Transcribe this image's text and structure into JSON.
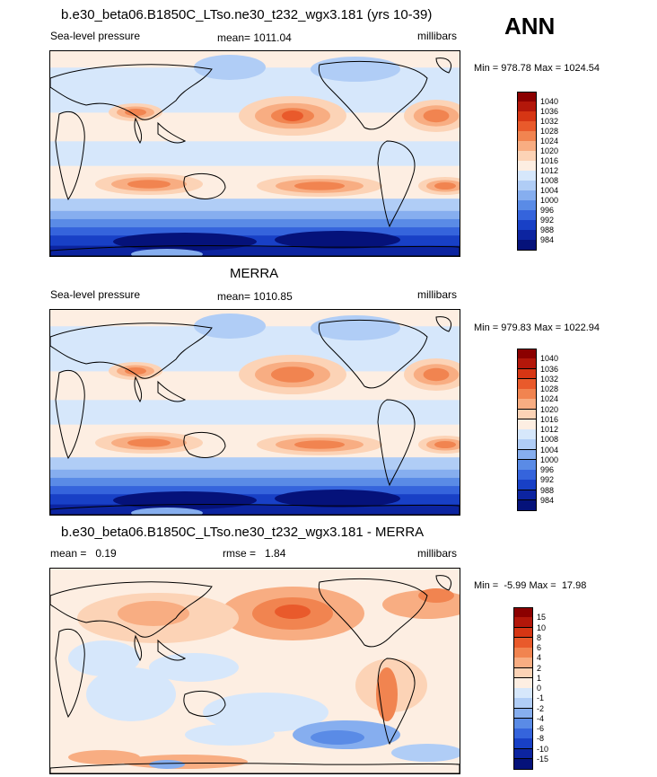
{
  "season": "ANN",
  "panels": [
    {
      "id": "model",
      "title": "b.e30_beta06.B1850C_LTso.ne30_t232_wgx3.181 (yrs 10-39)",
      "variable": "Sea-level pressure",
      "stat_label": "mean= 1011.04",
      "units": "millibars",
      "minmax": "Min = 978.78 Max = 1024.54"
    },
    {
      "id": "obs",
      "title": "MERRA",
      "variable": "Sea-level pressure",
      "stat_label": "mean= 1010.85",
      "units": "millibars",
      "minmax": "Min = 979.83 Max = 1022.94"
    },
    {
      "id": "diff",
      "title": "b.e30_beta06.B1850C_LTso.ne30_t232_wgx3.181 - MERRA",
      "mean_label": "mean =   0.19",
      "rmse_label": "rmse =   1.84",
      "units": "millibars",
      "minmax": "Min =  -5.99 Max =  17.98"
    }
  ],
  "chart_data": [
    {
      "type": "heatmap",
      "title": "b.e30_beta06.B1850C_LTso.ne30_t232_wgx3.181 (yrs 10-39)",
      "variable": "Sea-level pressure",
      "units": "millibars",
      "mean": 1011.04,
      "min": 978.78,
      "max": 1024.54,
      "colorbar_levels": [
        "1040",
        "1036",
        "1032",
        "1028",
        "1024",
        "1020",
        "1016",
        "1012",
        "1008",
        "1004",
        "1000",
        "996",
        "992",
        "988",
        "984"
      ],
      "colorbar_colors": [
        "#8b0000",
        "#b3170a",
        "#d63614",
        "#e95a2b",
        "#f18450",
        "#f8ad82",
        "#fcd3b6",
        "#fdeee2",
        "#d6e7fb",
        "#b0cdf6",
        "#86aeef",
        "#5a8be6",
        "#3564dc",
        "#1840c6",
        "#0c24a0",
        "#05127a"
      ]
    },
    {
      "type": "heatmap",
      "title": "MERRA",
      "variable": "Sea-level pressure",
      "units": "millibars",
      "mean": 1010.85,
      "min": 979.83,
      "max": 1022.94,
      "colorbar_levels": [
        "1040",
        "1036",
        "1032",
        "1028",
        "1024",
        "1020",
        "1016",
        "1012",
        "1008",
        "1004",
        "1000",
        "996",
        "992",
        "988",
        "984"
      ],
      "colorbar_colors": [
        "#8b0000",
        "#b3170a",
        "#d63614",
        "#e95a2b",
        "#f18450",
        "#f8ad82",
        "#fcd3b6",
        "#fdeee2",
        "#d6e7fb",
        "#b0cdf6",
        "#86aeef",
        "#5a8be6",
        "#3564dc",
        "#1840c6",
        "#0c24a0",
        "#05127a"
      ]
    },
    {
      "type": "heatmap",
      "title": "b.e30_beta06.B1850C_LTso.ne30_t232_wgx3.181 - MERRA",
      "units": "millibars",
      "mean": 0.19,
      "rmse": 1.84,
      "min": -5.99,
      "max": 17.98,
      "colorbar_levels": [
        "15",
        "10",
        "8",
        "6",
        "4",
        "2",
        "1",
        "0",
        "-1",
        "-2",
        "-4",
        "-6",
        "-8",
        "-10",
        "-15"
      ],
      "colorbar_colors": [
        "#8b0000",
        "#b3170a",
        "#d63614",
        "#e95a2b",
        "#f18450",
        "#f8ad82",
        "#fcd3b6",
        "#fdeee2",
        "#d6e7fb",
        "#b0cdf6",
        "#86aeef",
        "#5a8be6",
        "#3564dc",
        "#1840c6",
        "#0c24a0",
        "#05127a"
      ]
    }
  ]
}
